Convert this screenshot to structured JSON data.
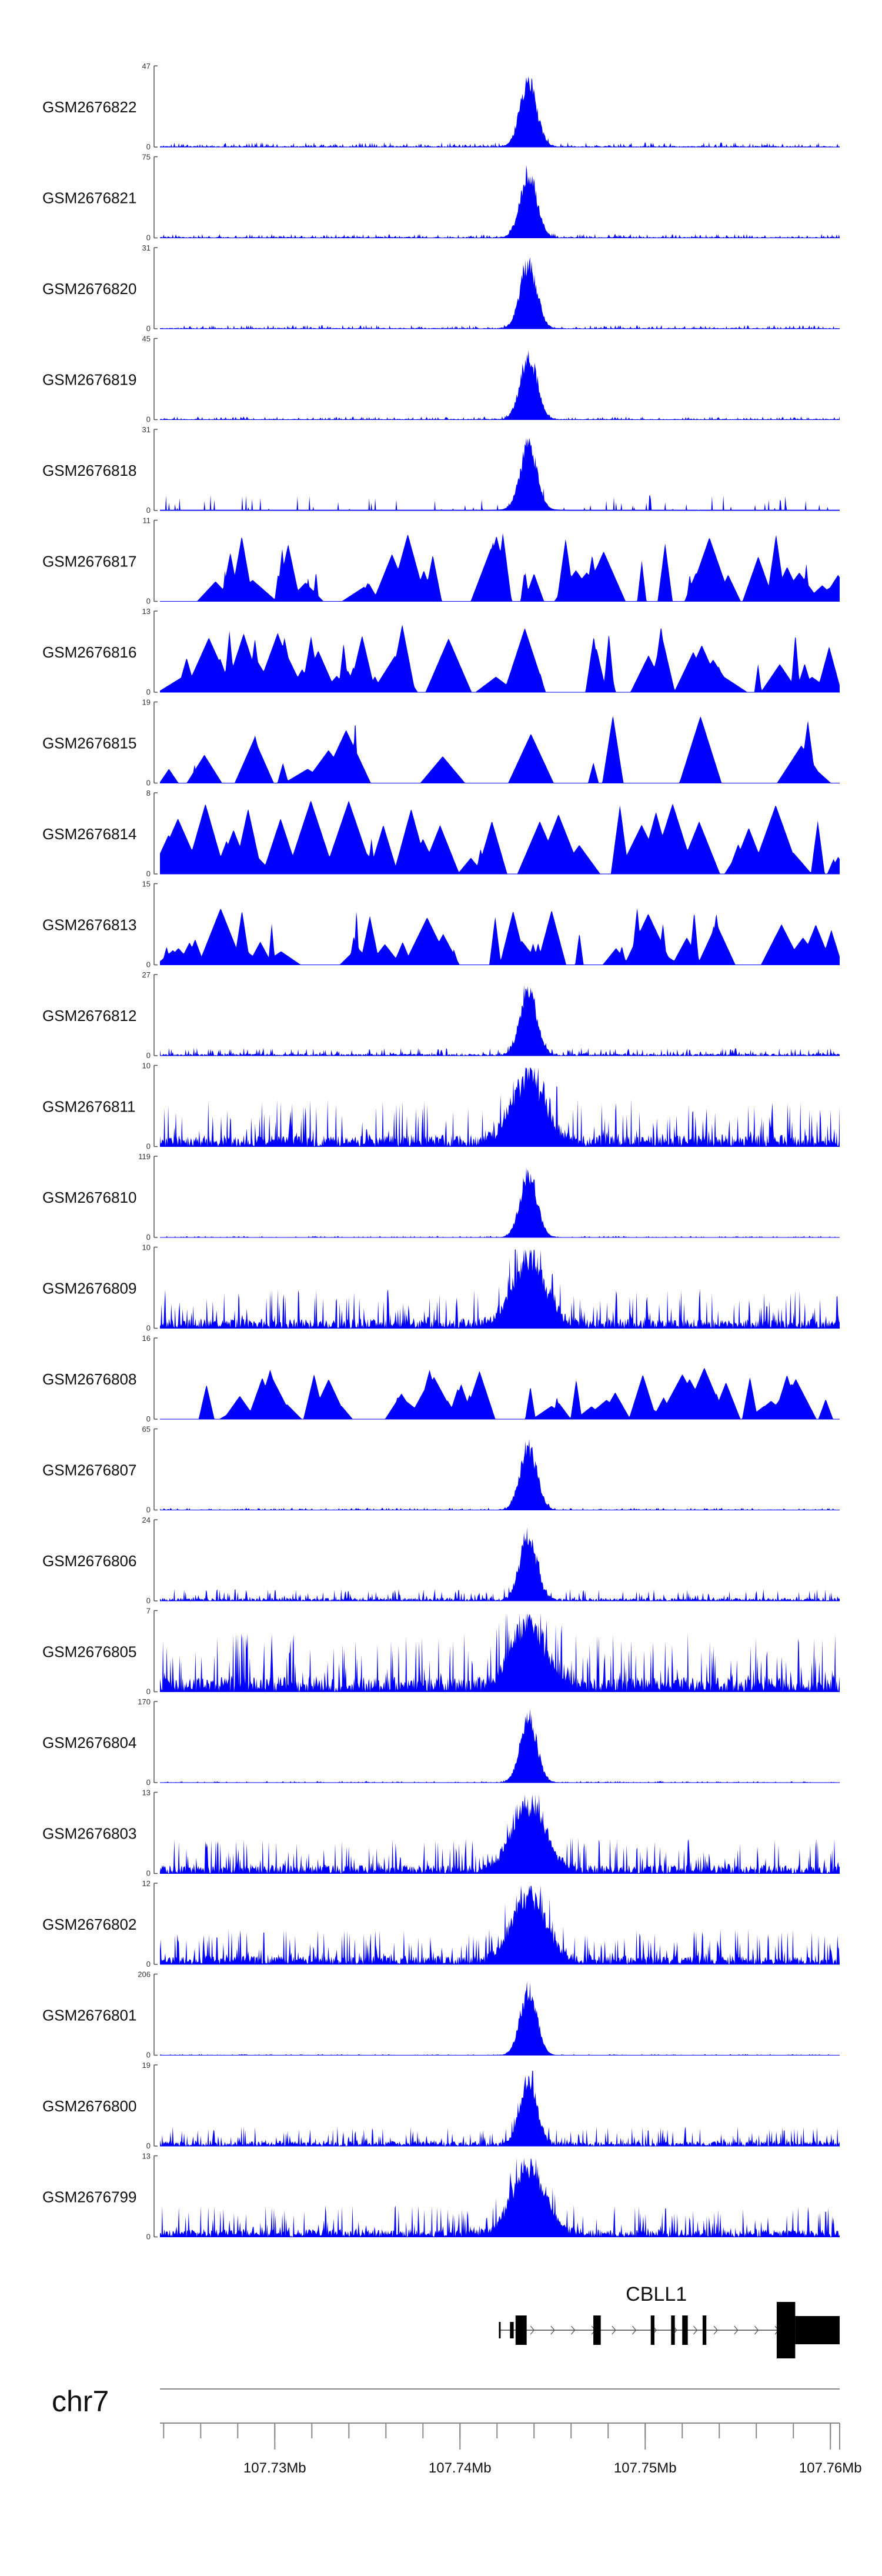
{
  "chart_data": {
    "type": "area",
    "title": "",
    "chromosome": "chr7",
    "x_unit": "Mb",
    "xlim": [
      107.7238,
      107.7605
    ],
    "x_ticks": [
      {
        "value": 107.73,
        "label": "107.73Mb"
      },
      {
        "value": 107.74,
        "label": "107.74Mb"
      },
      {
        "value": 107.75,
        "label": "107.75Mb"
      },
      {
        "value": 107.76,
        "label": "107.76Mb"
      }
    ],
    "minor_tick_step": 0.002,
    "fill_color": "#0000ff",
    "peak_summit": 107.7437,
    "tracks": [
      {
        "name": "GSM2676822",
        "ymax": 47,
        "ymax_label": "47",
        "ymin_label": "0",
        "profile": "peak",
        "peak_height": 0.95,
        "bg": 0.06,
        "seed": 22
      },
      {
        "name": "GSM2676821",
        "ymax": 75,
        "ymax_label": "75",
        "ymin_label": "0",
        "profile": "peak",
        "peak_height": 0.92,
        "bg": 0.05,
        "seed": 21
      },
      {
        "name": "GSM2676820",
        "ymax": 31,
        "ymax_label": "31",
        "ymin_label": "0",
        "profile": "peak",
        "peak_height": 0.95,
        "bg": 0.05,
        "seed": 20
      },
      {
        "name": "GSM2676819",
        "ymax": 45,
        "ymax_label": "45",
        "ymin_label": "0",
        "profile": "peak",
        "peak_height": 0.95,
        "bg": 0.04,
        "seed": 19
      },
      {
        "name": "GSM2676818",
        "ymax": 31,
        "ymax_label": "31",
        "ymin_label": "0",
        "profile": "sparse",
        "peak_height": 0.95,
        "bg": 0.2,
        "seed": 18
      },
      {
        "name": "GSM2676817",
        "ymax": 11,
        "ymax_label": "11",
        "ymin_label": "0",
        "profile": "triangles",
        "peak_height": 0.6,
        "bg": 0.9,
        "seed": 17
      },
      {
        "name": "GSM2676816",
        "ymax": 13,
        "ymax_label": "13",
        "ymin_label": "0",
        "profile": "triangles",
        "peak_height": 0.6,
        "bg": 0.9,
        "seed": 16
      },
      {
        "name": "GSM2676815",
        "ymax": 19,
        "ymax_label": "19",
        "ymin_label": "0",
        "profile": "triangles-sparse",
        "peak_height": 0.3,
        "bg": 0.9,
        "seed": 15
      },
      {
        "name": "GSM2676814",
        "ymax": 8,
        "ymax_label": "8",
        "ymin_label": "0",
        "profile": "triangles",
        "peak_height": 0.6,
        "bg": 0.95,
        "seed": 14
      },
      {
        "name": "GSM2676813",
        "ymax": 15,
        "ymax_label": "15",
        "ymin_label": "0",
        "profile": "triangles",
        "peak_height": 0.5,
        "bg": 0.8,
        "seed": 13
      },
      {
        "name": "GSM2676812",
        "ymax": 27,
        "ymax_label": "27",
        "ymin_label": "0",
        "profile": "peak",
        "peak_height": 0.95,
        "bg": 0.1,
        "seed": 12
      },
      {
        "name": "GSM2676811",
        "ymax": 10,
        "ymax_label": "10",
        "ymin_label": "0",
        "profile": "broad",
        "peak_height": 0.95,
        "bg": 0.6,
        "seed": 11
      },
      {
        "name": "GSM2676810",
        "ymax": 119,
        "ymax_label": "119",
        "ymin_label": "0",
        "profile": "peak",
        "peak_height": 0.95,
        "bg": 0.02,
        "seed": 10
      },
      {
        "name": "GSM2676809",
        "ymax": 10,
        "ymax_label": "10",
        "ymin_label": "0",
        "profile": "broad",
        "peak_height": 0.95,
        "bg": 0.5,
        "seed": 9
      },
      {
        "name": "GSM2676808",
        "ymax": 16,
        "ymax_label": "16",
        "ymin_label": "0",
        "profile": "triangles",
        "peak_height": 0.5,
        "bg": 0.7,
        "seed": 8
      },
      {
        "name": "GSM2676807",
        "ymax": 65,
        "ymax_label": "65",
        "ymin_label": "0",
        "profile": "peak",
        "peak_height": 0.95,
        "bg": 0.03,
        "seed": 7
      },
      {
        "name": "GSM2676806",
        "ymax": 24,
        "ymax_label": "24",
        "ymin_label": "0",
        "profile": "peak",
        "peak_height": 0.95,
        "bg": 0.15,
        "seed": 6
      },
      {
        "name": "GSM2676805",
        "ymax": 7,
        "ymax_label": "7",
        "ymin_label": "0",
        "profile": "broad",
        "peak_height": 0.95,
        "bg": 0.75,
        "seed": 5
      },
      {
        "name": "GSM2676804",
        "ymax": 170,
        "ymax_label": "170",
        "ymin_label": "0",
        "profile": "peak",
        "peak_height": 0.95,
        "bg": 0.02,
        "seed": 4
      },
      {
        "name": "GSM2676803",
        "ymax": 13,
        "ymax_label": "13",
        "ymin_label": "0",
        "profile": "broad",
        "peak_height": 0.95,
        "bg": 0.45,
        "seed": 3
      },
      {
        "name": "GSM2676802",
        "ymax": 12,
        "ymax_label": "12",
        "ymin_label": "0",
        "profile": "broad",
        "peak_height": 0.95,
        "bg": 0.45,
        "seed": 2
      },
      {
        "name": "GSM2676801",
        "ymax": 206,
        "ymax_label": "206",
        "ymin_label": "0",
        "profile": "peak",
        "peak_height": 0.95,
        "bg": 0.015,
        "seed": 1
      },
      {
        "name": "GSM2676800",
        "ymax": 19,
        "ymax_label": "19",
        "ymin_label": "0",
        "profile": "peak",
        "peak_height": 0.95,
        "bg": 0.25,
        "seed": 100
      },
      {
        "name": "GSM2676799",
        "ymax": 13,
        "ymax_label": "13",
        "ymin_label": "0",
        "profile": "broad",
        "peak_height": 0.95,
        "bg": 0.4,
        "seed": 99
      }
    ],
    "gene": {
      "name": "CBLL1",
      "strand": "+",
      "start": 107.7421,
      "end": 107.7605,
      "exons": [
        {
          "start": 107.7421,
          "end": 107.74215,
          "type": "utr"
        },
        {
          "start": 107.7427,
          "end": 107.7429,
          "type": "utr"
        },
        {
          "start": 107.743,
          "end": 107.7436,
          "type": "cds"
        },
        {
          "start": 107.7472,
          "end": 107.7476,
          "type": "cds"
        },
        {
          "start": 107.7503,
          "end": 107.7505,
          "type": "cds"
        },
        {
          "start": 107.7514,
          "end": 107.7516,
          "type": "cds"
        },
        {
          "start": 107.752,
          "end": 107.7523,
          "type": "cds"
        },
        {
          "start": 107.7531,
          "end": 107.7533,
          "type": "cds"
        },
        {
          "start": 107.7571,
          "end": 107.7581,
          "type": "cds"
        },
        {
          "start": 107.7581,
          "end": 107.7605,
          "type": "utr"
        }
      ]
    }
  }
}
